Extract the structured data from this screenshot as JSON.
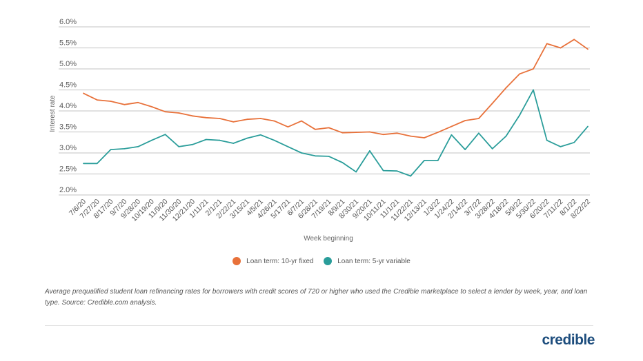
{
  "chart_data": {
    "type": "line",
    "xlabel": "Week beginning",
    "ylabel": "Interest rate",
    "ylim": [
      2.0,
      6.0
    ],
    "yticks": [
      "2.0%",
      "2.5%",
      "3.0%",
      "3.5%",
      "4.0%",
      "4.5%",
      "5.0%",
      "5.5%",
      "6.0%"
    ],
    "grid": true,
    "legend_position": "bottom",
    "categories": [
      "7/6/20",
      "7/27/20",
      "8/17/20",
      "9/7/20",
      "9/28/20",
      "10/19/20",
      "11/9/20",
      "11/30/20",
      "12/21/20",
      "1/11/21",
      "2/1/21",
      "2/22/21",
      "3/15/21",
      "4/5/21",
      "4/26/21",
      "5/17/21",
      "6/7/21",
      "6/28/21",
      "7/19/21",
      "8/9/21",
      "8/30/21",
      "9/20/21",
      "10/11/21",
      "11/1/21",
      "11/22/21",
      "12/13/21",
      "1/3/22",
      "1/24/22",
      "2/14/22",
      "3/7/22",
      "3/28/22",
      "4/18/22",
      "5/9/22",
      "5/30/22",
      "6/20/22",
      "7/11/22",
      "8/1/22",
      "8/22/22"
    ],
    "series": [
      {
        "name": "Loan term: 10-yr fixed",
        "color": "#e8713a",
        "values": [
          4.42,
          4.26,
          4.23,
          4.15,
          4.2,
          4.1,
          3.98,
          3.95,
          3.88,
          3.84,
          3.82,
          3.74,
          3.8,
          3.82,
          3.76,
          3.62,
          3.76,
          3.56,
          3.6,
          3.48,
          3.49,
          3.5,
          3.44,
          3.47,
          3.4,
          3.36,
          3.49,
          3.63,
          3.77,
          3.82,
          4.18,
          4.55,
          4.88,
          5.0,
          5.6,
          5.5,
          5.7,
          5.47
        ]
      },
      {
        "name": "Loan term: 5-yr variable",
        "color": "#2a9d9a",
        "values": [
          2.75,
          2.75,
          3.08,
          3.1,
          3.15,
          3.3,
          3.44,
          3.15,
          3.2,
          3.32,
          3.3,
          3.23,
          3.35,
          3.43,
          3.3,
          3.15,
          3.0,
          2.93,
          2.92,
          2.77,
          2.55,
          3.05,
          2.58,
          2.57,
          2.45,
          2.82,
          2.82,
          3.43,
          3.08,
          3.47,
          3.1,
          3.4,
          3.9,
          4.5,
          3.3,
          3.15,
          3.25,
          3.63
        ]
      }
    ]
  },
  "caption": "Average prequalified student loan refinancing rates for borrowers with credit scores of 720 or higher who used the Credible marketplace to select a lender by week, year, and loan type. Source: Credible.com analysis.",
  "logo": "credible"
}
